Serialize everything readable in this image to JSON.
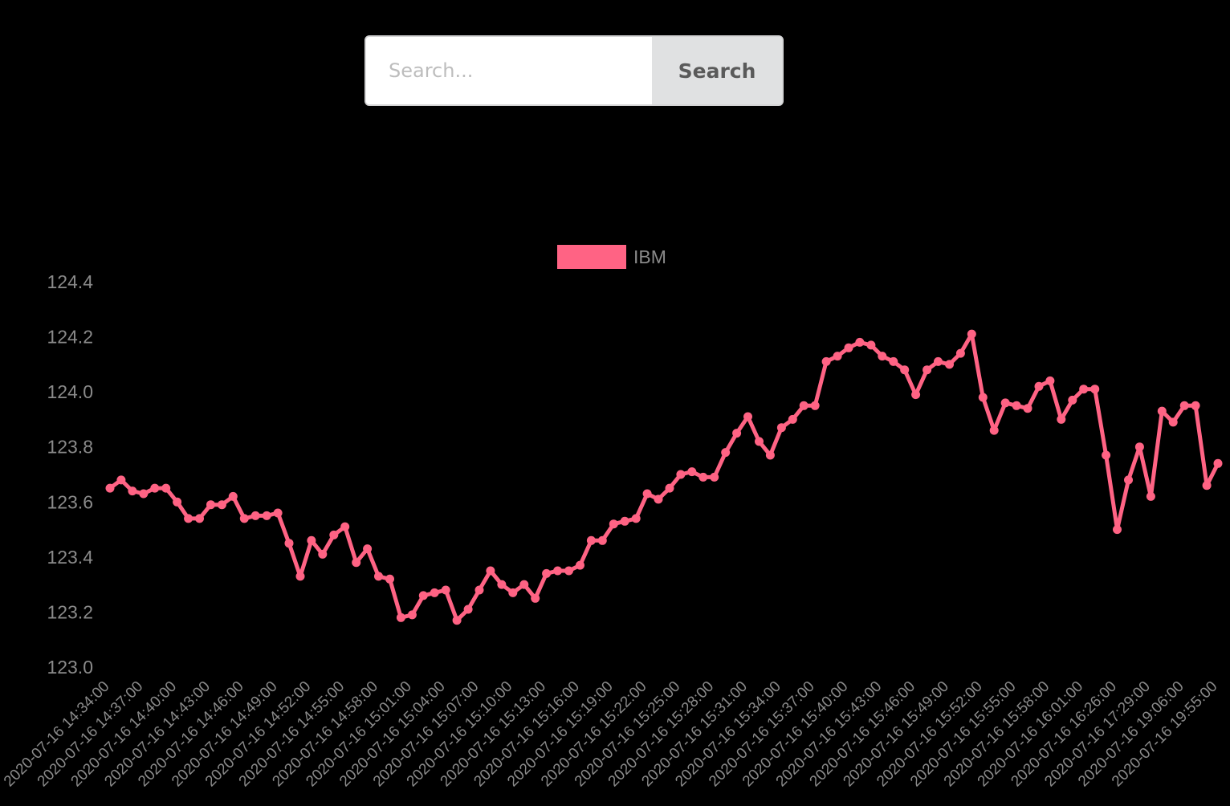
{
  "search": {
    "placeholder": "Search...",
    "button_label": "Search"
  },
  "colors": {
    "background": "#000000",
    "series": "#ff6384",
    "text": "#8a8a8a"
  },
  "chart_data": {
    "type": "line",
    "ylim": [
      123.0,
      124.4
    ],
    "ytick_step": 0.2,
    "grid": false,
    "legend": "top-center",
    "xtick_labels": [
      "2020-07-16 14:34:00",
      "2020-07-16 14:37:00",
      "2020-07-16 14:40:00",
      "2020-07-16 14:43:00",
      "2020-07-16 14:46:00",
      "2020-07-16 14:49:00",
      "2020-07-16 14:52:00",
      "2020-07-16 14:55:00",
      "2020-07-16 14:58:00",
      "2020-07-16 15:01:00",
      "2020-07-16 15:04:00",
      "2020-07-16 15:07:00",
      "2020-07-16 15:10:00",
      "2020-07-16 15:13:00",
      "2020-07-16 15:16:00",
      "2020-07-16 15:19:00",
      "2020-07-16 15:22:00",
      "2020-07-16 15:25:00",
      "2020-07-16 15:28:00",
      "2020-07-16 15:31:00",
      "2020-07-16 15:34:00",
      "2020-07-16 15:37:00",
      "2020-07-16 15:40:00",
      "2020-07-16 15:43:00",
      "2020-07-16 15:46:00",
      "2020-07-16 15:49:00",
      "2020-07-16 15:52:00",
      "2020-07-16 15:55:00",
      "2020-07-16 15:58:00",
      "2020-07-16 16:01:00",
      "2020-07-16 16:26:00",
      "2020-07-16 17:29:00",
      "2020-07-16 19:06:00",
      "2020-07-16 19:55:00"
    ],
    "series": [
      {
        "name": "IBM",
        "color": "#ff6384",
        "values": [
          123.65,
          123.68,
          123.64,
          123.63,
          123.65,
          123.65,
          123.6,
          123.54,
          123.54,
          123.59,
          123.59,
          123.62,
          123.54,
          123.55,
          123.55,
          123.56,
          123.45,
          123.33,
          123.46,
          123.41,
          123.48,
          123.51,
          123.38,
          123.43,
          123.33,
          123.32,
          123.18,
          123.19,
          123.26,
          123.27,
          123.28,
          123.17,
          123.21,
          123.28,
          123.35,
          123.3,
          123.27,
          123.3,
          123.25,
          123.34,
          123.35,
          123.35,
          123.37,
          123.46,
          123.46,
          123.52,
          123.53,
          123.54,
          123.63,
          123.61,
          123.65,
          123.7,
          123.71,
          123.69,
          123.69,
          123.78,
          123.85,
          123.91,
          123.82,
          123.77,
          123.87,
          123.9,
          123.95,
          123.95,
          124.11,
          124.13,
          124.16,
          124.18,
          124.17,
          124.13,
          124.11,
          124.08,
          123.99,
          124.08,
          124.11,
          124.1,
          124.14,
          124.21,
          123.98,
          123.86,
          123.96,
          123.95,
          123.94,
          124.02,
          124.04,
          123.9,
          123.97,
          124.01,
          124.01,
          123.77,
          123.5,
          123.68,
          123.8,
          123.62,
          123.93,
          123.89,
          123.95,
          123.95,
          123.66,
          123.74
        ]
      }
    ]
  }
}
